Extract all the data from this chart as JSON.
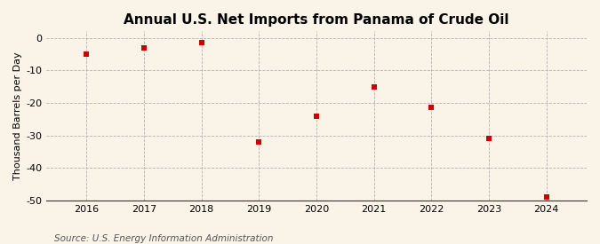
{
  "title": "Annual U.S. Net Imports from Panama of Crude Oil",
  "ylabel": "Thousand Barrels per Day",
  "source": "Source: U.S. Energy Information Administration",
  "years": [
    2016,
    2017,
    2018,
    2019,
    2020,
    2021,
    2022,
    2023,
    2024
  ],
  "values": [
    -5.0,
    -3.0,
    -1.5,
    -32.0,
    -24.0,
    -15.0,
    -21.5,
    -31.0,
    -49.0
  ],
  "xlim": [
    2015.3,
    2024.7
  ],
  "ylim": [
    -50,
    2
  ],
  "yticks": [
    0,
    -10,
    -20,
    -30,
    -40,
    -50
  ],
  "xticks": [
    2016,
    2017,
    2018,
    2019,
    2020,
    2021,
    2022,
    2023,
    2024
  ],
  "marker_color": "#cc0000",
  "marker": "s",
  "marker_size": 5,
  "background_color": "#faf4e8",
  "grid_color": "#aaaaaa",
  "title_fontsize": 11,
  "label_fontsize": 8,
  "tick_fontsize": 8,
  "source_fontsize": 7.5
}
